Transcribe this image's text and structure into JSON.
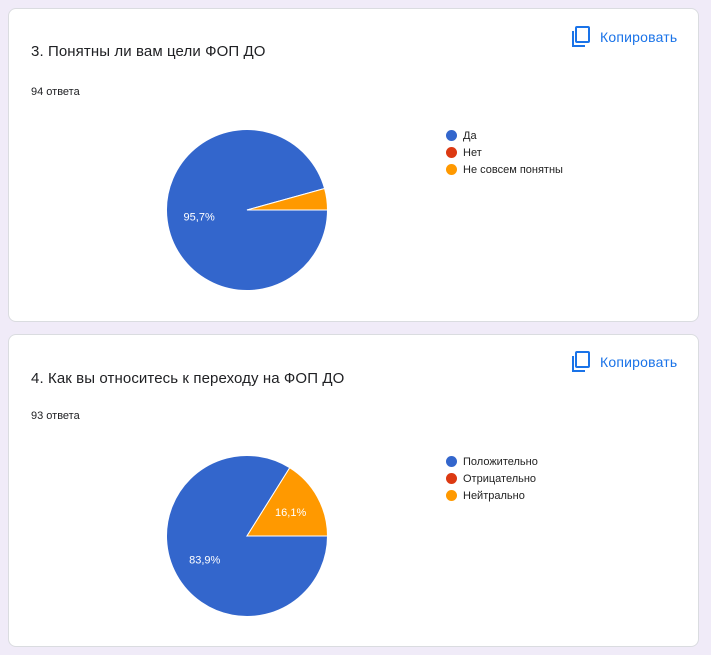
{
  "colors": {
    "blue": "#3366cc",
    "red": "#dc3912",
    "orange": "#ff9900",
    "accent": "#1a73e8"
  },
  "cards": [
    {
      "title": "3. Понятны ли вам цели ФОП ДО",
      "responses": "94 ответа",
      "copy_label": "Копировать",
      "copy_icon": "copy-icon"
    },
    {
      "title": "4. Как вы относитесь к переходу на ФОП ДО",
      "responses": "93 ответа",
      "copy_label": "Копировать",
      "copy_icon": "copy-icon"
    }
  ],
  "chart_data": [
    {
      "type": "pie",
      "title": "3. Понятны ли вам цели ФОП ДО",
      "legend_position": "right",
      "categories": [
        "Да",
        "Нет",
        "Не совсем понятны"
      ],
      "values": [
        95.7,
        0,
        4.3
      ],
      "colors": [
        "#3366cc",
        "#dc3912",
        "#ff9900"
      ],
      "data_labels": [
        "95,7%",
        "",
        ""
      ]
    },
    {
      "type": "pie",
      "title": "4. Как вы относитесь к переходу на ФОП ДО",
      "legend_position": "right",
      "categories": [
        "Положительно",
        "Отрицательно",
        "Нейтрально"
      ],
      "values": [
        83.9,
        0,
        16.1
      ],
      "colors": [
        "#3366cc",
        "#dc3912",
        "#ff9900"
      ],
      "data_labels": [
        "83,9%",
        "",
        "16,1%"
      ]
    }
  ]
}
